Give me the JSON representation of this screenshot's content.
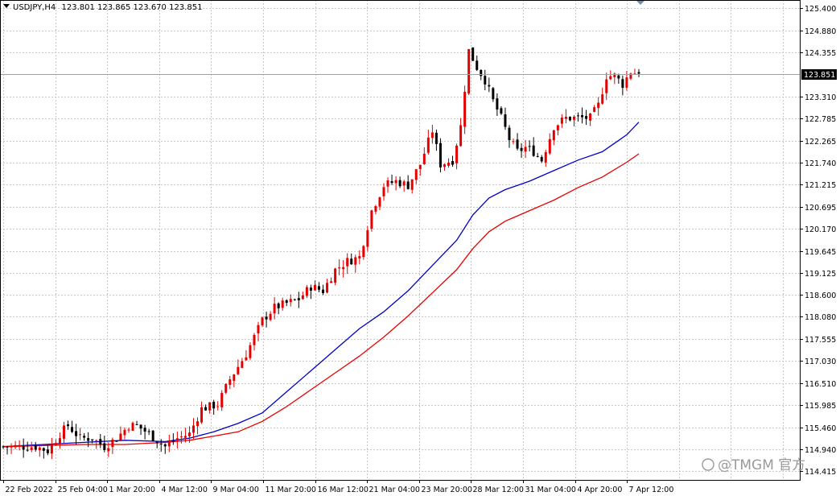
{
  "header": {
    "symbol": "USDJPY,H4",
    "ohlc": "123.801 123.865 123.670 123.851"
  },
  "current_price": {
    "label": "123.851",
    "value": 123.851
  },
  "watermark": "@TMGM 官方",
  "colors": {
    "grid": "#c8c8c8",
    "bull": "#e60000",
    "bear": "#000000",
    "ma_fast": "#0000c8",
    "ma_slow": "#e60000",
    "price_line": "#a0a0a0",
    "price_tag_bg": "#000000"
  },
  "chart_data": {
    "type": "candlestick",
    "title": "USDJPY,H4",
    "ylim": [
      114.21,
      125.6
    ],
    "y_ticks": [
      "125.400",
      "124.880",
      "124.355",
      "123.851",
      "123.310",
      "122.785",
      "122.265",
      "121.740",
      "121.215",
      "120.695",
      "120.170",
      "119.645",
      "119.125",
      "118.600",
      "118.080",
      "117.555",
      "117.030",
      "116.510",
      "115.985",
      "115.460",
      "114.940",
      "114.415"
    ],
    "x_ticks": [
      "22 Feb 2022",
      "25 Feb 04:00",
      "1 Mar 20:00",
      "4 Mar 12:00",
      "9 Mar 04:00",
      "11 Mar 20:00",
      "16 Mar 12:00",
      "21 Mar 04:00",
      "23 Mar 20:00",
      "28 Mar 12:00",
      "31 Mar 04:00",
      "4 Apr 20:00",
      "7 Apr 12:00"
    ],
    "grid": true,
    "close_path": [
      [
        0,
        115.0
      ],
      [
        8,
        115.0
      ],
      [
        11,
        114.9
      ],
      [
        14,
        115.3
      ],
      [
        16,
        115.5
      ],
      [
        19,
        115.2
      ],
      [
        22,
        115.2
      ],
      [
        25,
        115.0
      ],
      [
        28,
        115.2
      ],
      [
        31,
        115.5
      ],
      [
        33,
        115.5
      ],
      [
        36,
        115.3
      ],
      [
        40,
        115.0
      ],
      [
        43,
        115.2
      ],
      [
        46,
        115.3
      ],
      [
        49,
        115.9
      ],
      [
        53,
        116.0
      ],
      [
        56,
        116.6
      ],
      [
        60,
        117.2
      ],
      [
        64,
        118.0
      ],
      [
        67,
        118.3
      ],
      [
        70,
        118.4
      ],
      [
        73,
        118.5
      ],
      [
        76,
        118.8
      ],
      [
        79,
        118.7
      ],
      [
        82,
        119.2
      ],
      [
        85,
        119.4
      ],
      [
        88,
        119.5
      ],
      [
        91,
        120.6
      ],
      [
        94,
        121.2
      ],
      [
        97,
        121.3
      ],
      [
        100,
        121.2
      ],
      [
        103,
        121.7
      ],
      [
        106,
        122.5
      ],
      [
        108,
        121.7
      ],
      [
        111,
        121.8
      ],
      [
        113,
        122.6
      ],
      [
        115,
        124.4
      ],
      [
        117,
        124.0
      ],
      [
        119,
        123.7
      ],
      [
        121,
        123.2
      ],
      [
        123,
        122.8
      ],
      [
        125,
        122.3
      ],
      [
        127,
        122.0
      ],
      [
        129,
        122.1
      ],
      [
        131,
        122.0
      ],
      [
        133,
        121.8
      ],
      [
        136,
        122.6
      ],
      [
        139,
        122.8
      ],
      [
        142,
        122.8
      ],
      [
        145,
        122.8
      ],
      [
        147,
        123.1
      ],
      [
        149,
        123.8
      ],
      [
        151,
        123.8
      ],
      [
        153,
        123.6
      ],
      [
        155,
        123.9
      ],
      [
        157,
        123.85
      ]
    ],
    "series": [
      {
        "name": "",
        "values": [
          [
            0,
            115.0
          ],
          [
            20,
            115.1
          ],
          [
            30,
            115.15
          ],
          [
            40,
            115.12
          ],
          [
            46,
            115.2
          ],
          [
            52,
            115.35
          ],
          [
            58,
            115.55
          ],
          [
            64,
            115.8
          ],
          [
            70,
            116.3
          ],
          [
            76,
            116.8
          ],
          [
            82,
            117.3
          ],
          [
            88,
            117.8
          ],
          [
            94,
            118.2
          ],
          [
            100,
            118.7
          ],
          [
            106,
            119.3
          ],
          [
            112,
            119.9
          ],
          [
            116,
            120.5
          ],
          [
            120,
            120.9
          ],
          [
            124,
            121.1
          ],
          [
            130,
            121.3
          ],
          [
            136,
            121.55
          ],
          [
            142,
            121.8
          ],
          [
            148,
            122.0
          ],
          [
            154,
            122.4
          ],
          [
            157,
            122.7
          ]
        ]
      },
      {
        "name": "",
        "values": [
          [
            0,
            115.0
          ],
          [
            20,
            115.05
          ],
          [
            30,
            115.05
          ],
          [
            40,
            115.1
          ],
          [
            46,
            115.15
          ],
          [
            52,
            115.25
          ],
          [
            58,
            115.35
          ],
          [
            64,
            115.6
          ],
          [
            70,
            115.95
          ],
          [
            76,
            116.35
          ],
          [
            82,
            116.75
          ],
          [
            88,
            117.15
          ],
          [
            94,
            117.6
          ],
          [
            100,
            118.1
          ],
          [
            106,
            118.65
          ],
          [
            112,
            119.2
          ],
          [
            116,
            119.7
          ],
          [
            120,
            120.1
          ],
          [
            124,
            120.35
          ],
          [
            130,
            120.6
          ],
          [
            136,
            120.85
          ],
          [
            142,
            121.15
          ],
          [
            148,
            121.4
          ],
          [
            154,
            121.75
          ],
          [
            157,
            121.95
          ]
        ]
      }
    ]
  }
}
